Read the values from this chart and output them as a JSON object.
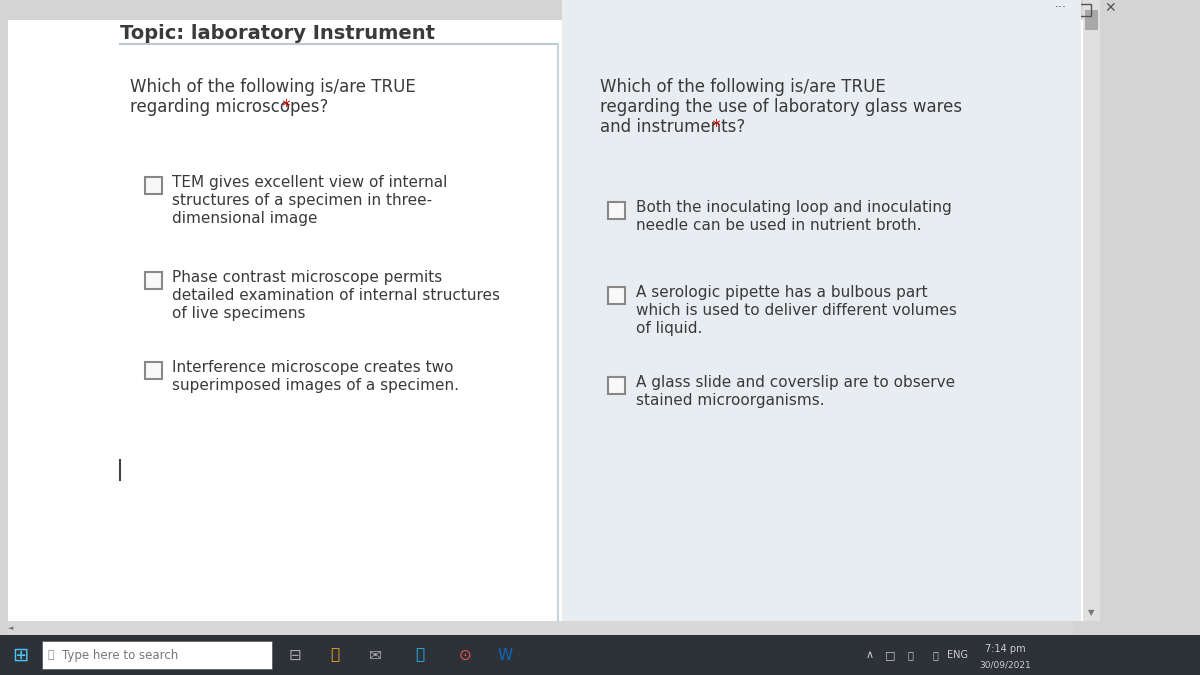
{
  "title": "Topic: laboratory Instrument",
  "bg_color": "#d4d4d4",
  "content_bg": "#ffffff",
  "right_panel_bg": "#e8edf2",
  "divider_color": "#c8d4dc",
  "q1_lines": [
    "Which of the following is/are TRUE",
    "regarding microscopes?"
  ],
  "q2_lines": [
    "Which of the following is/are TRUE",
    "regarding the use of laboratory glass wares",
    "and instruments?"
  ],
  "left_options": [
    [
      "TEM gives excellent view of internal",
      "structures of a specimen in three-",
      "dimensional image"
    ],
    [
      "Phase contrast microscope permits",
      "detailed examination of internal structures",
      "of live specimens"
    ],
    [
      "Interference microscope creates two",
      "superimposed images of a specimen."
    ]
  ],
  "right_options": [
    [
      "Both the inoculating loop and inoculating",
      "needle can be used in nutrient broth."
    ],
    [
      "A serologic pipette has a bulbous part",
      "which is used to deliver different volumes",
      "of liquid."
    ],
    [
      "A glass slide and coverslip are to observe",
      "stained microorganisms."
    ]
  ],
  "text_color": "#3a3a3a",
  "star_color": "#cc0000",
  "checkbox_edge_color": "#888888",
  "checkbox_face_color": "#f8f8f8",
  "title_fontsize": 14,
  "question_fontsize": 12,
  "option_fontsize": 11,
  "taskbar_bg": "#2d3138",
  "taskbar_search_bg": "#ffffff",
  "scrollbar_bg": "#c8c8c8",
  "scrollbar_thumb": "#a0a0a0",
  "hscrollbar_bg": "#d8d8d8",
  "titlebar_bg": "#f0f0f0",
  "win_controls_color": "#555555"
}
